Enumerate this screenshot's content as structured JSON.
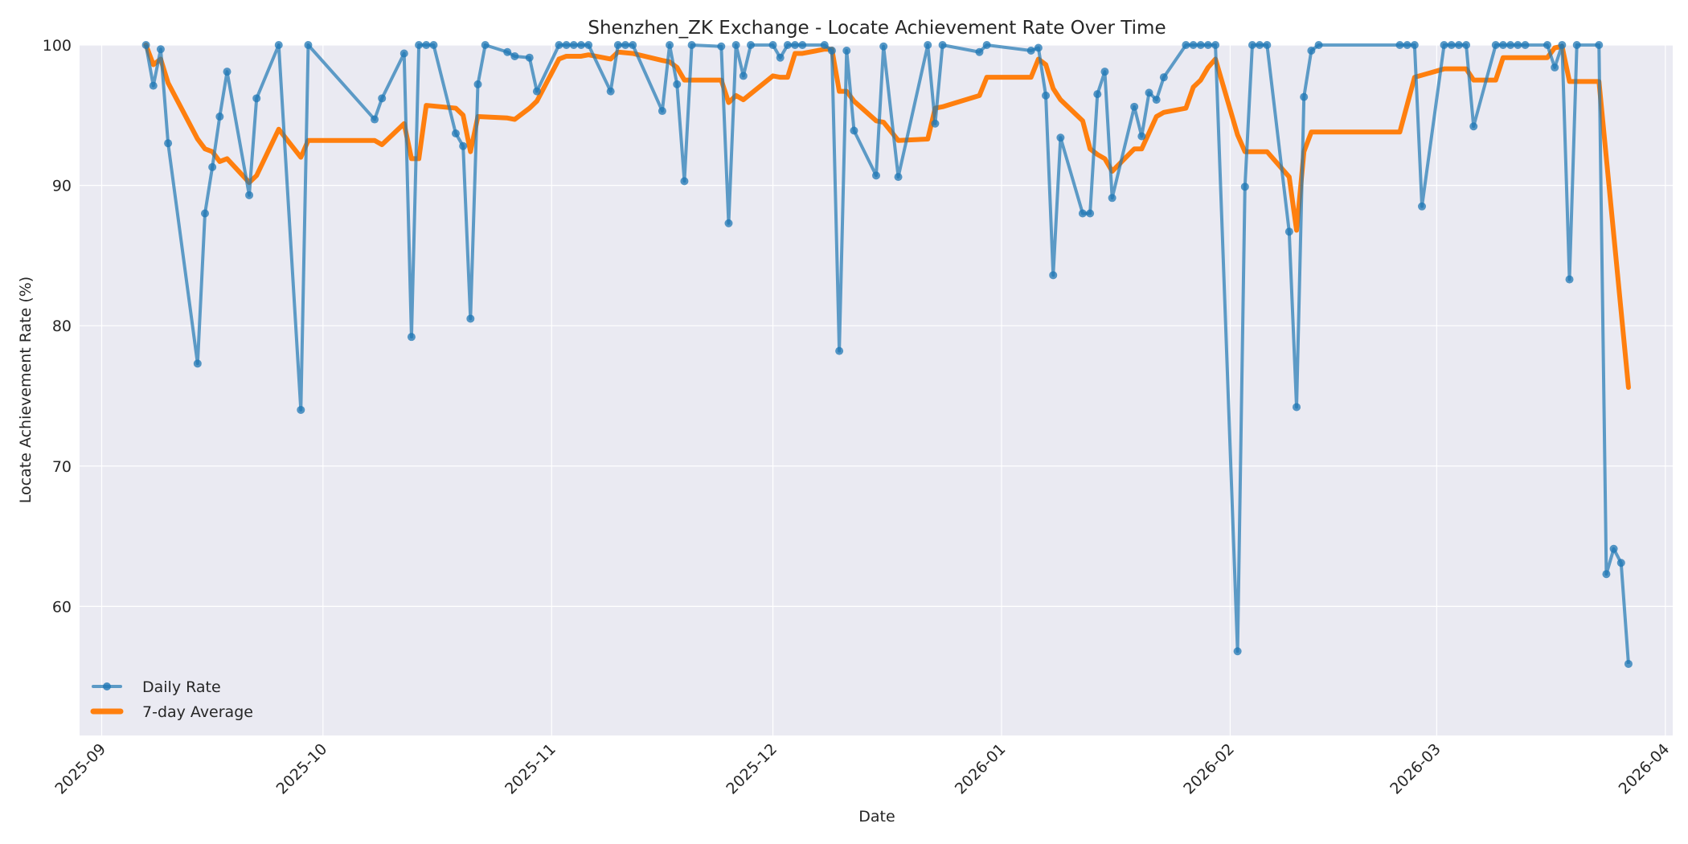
{
  "chart_data": {
    "type": "line",
    "title": "Shenzhen_ZK Exchange - Locate Achievement Rate Over Time",
    "xlabel": "Date",
    "ylabel": "Locate Achievement Rate (%)",
    "ylim": [
      50.8,
      100
    ],
    "xlim": [
      "2025-08-29",
      "2026-04-02"
    ],
    "grid": true,
    "legend_position": "lower left",
    "x_tick_labels": [
      "2025-09",
      "2025-10",
      "2025-11",
      "2025-12",
      "2026-01",
      "2026-02",
      "2026-03",
      "2026-04"
    ],
    "y_tick_labels": [
      "60",
      "70",
      "80",
      "90",
      "100"
    ],
    "colors": {
      "daily": "#1f77b4",
      "avg": "#ff7f0e",
      "background": "#eaeaf2",
      "grid": "#ffffff"
    },
    "series": [
      {
        "name": "Daily Rate",
        "style": "line-marker",
        "points": [
          [
            "2025-09-07",
            100
          ],
          [
            "2025-09-08",
            97.1
          ],
          [
            "2025-09-09",
            99.7
          ],
          [
            "2025-09-10",
            93.0
          ],
          [
            "2025-09-14",
            77.3
          ],
          [
            "2025-09-15",
            88.0
          ],
          [
            "2025-09-16",
            91.3
          ],
          [
            "2025-09-17",
            94.9
          ],
          [
            "2025-09-18",
            98.1
          ],
          [
            "2025-09-21",
            89.3
          ],
          [
            "2025-09-22",
            96.2
          ],
          [
            "2025-09-25",
            100
          ],
          [
            "2025-09-28",
            74.0
          ],
          [
            "2025-09-29",
            100
          ],
          [
            "2025-10-08",
            94.7
          ],
          [
            "2025-10-09",
            96.2
          ],
          [
            "2025-10-12",
            99.4
          ],
          [
            "2025-10-13",
            79.2
          ],
          [
            "2025-10-14",
            100
          ],
          [
            "2025-10-15",
            100
          ],
          [
            "2025-10-16",
            100
          ],
          [
            "2025-10-19",
            93.7
          ],
          [
            "2025-10-20",
            92.8
          ],
          [
            "2025-10-21",
            80.5
          ],
          [
            "2025-10-22",
            97.2
          ],
          [
            "2025-10-23",
            100
          ],
          [
            "2025-10-26",
            99.5
          ],
          [
            "2025-10-27",
            99.2
          ],
          [
            "2025-10-29",
            99.1
          ],
          [
            "2025-10-30",
            96.7
          ],
          [
            "2025-11-02",
            100
          ],
          [
            "2025-11-03",
            100
          ],
          [
            "2025-11-04",
            100
          ],
          [
            "2025-11-05",
            100
          ],
          [
            "2025-11-06",
            100
          ],
          [
            "2025-11-09",
            96.7
          ],
          [
            "2025-11-10",
            100
          ],
          [
            "2025-11-11",
            100
          ],
          [
            "2025-11-12",
            100
          ],
          [
            "2025-11-16",
            95.3
          ],
          [
            "2025-11-17",
            100
          ],
          [
            "2025-11-18",
            97.2
          ],
          [
            "2025-11-19",
            90.3
          ],
          [
            "2025-11-20",
            100
          ],
          [
            "2025-11-24",
            99.9
          ],
          [
            "2025-11-25",
            87.3
          ],
          [
            "2025-11-26",
            100
          ],
          [
            "2025-11-27",
            97.8
          ],
          [
            "2025-11-28",
            100
          ],
          [
            "2025-12-01",
            100
          ],
          [
            "2025-12-02",
            99.1
          ],
          [
            "2025-12-03",
            100
          ],
          [
            "2025-12-04",
            100
          ],
          [
            "2025-12-05",
            100
          ],
          [
            "2025-12-08",
            100
          ],
          [
            "2025-12-09",
            99.6
          ],
          [
            "2025-12-10",
            78.2
          ],
          [
            "2025-12-11",
            99.6
          ],
          [
            "2025-12-12",
            93.9
          ],
          [
            "2025-12-15",
            90.7
          ],
          [
            "2025-12-16",
            99.9
          ],
          [
            "2025-12-18",
            90.6
          ],
          [
            "2025-12-22",
            100
          ],
          [
            "2025-12-23",
            94.4
          ],
          [
            "2025-12-24",
            100
          ],
          [
            "2025-12-29",
            99.5
          ],
          [
            "2025-12-30",
            100
          ],
          [
            "2026-01-05",
            99.6
          ],
          [
            "2026-01-06",
            99.8
          ],
          [
            "2026-01-07",
            96.4
          ],
          [
            "2026-01-08",
            83.6
          ],
          [
            "2026-01-09",
            93.4
          ],
          [
            "2026-01-12",
            88.0
          ],
          [
            "2026-01-13",
            88.0
          ],
          [
            "2026-01-14",
            96.5
          ],
          [
            "2026-01-15",
            98.1
          ],
          [
            "2026-01-16",
            89.1
          ],
          [
            "2026-01-19",
            95.6
          ],
          [
            "2026-01-20",
            93.5
          ],
          [
            "2026-01-21",
            96.6
          ],
          [
            "2026-01-22",
            96.1
          ],
          [
            "2026-01-23",
            97.7
          ],
          [
            "2026-01-26",
            100
          ],
          [
            "2026-01-27",
            100
          ],
          [
            "2026-01-28",
            100
          ],
          [
            "2026-01-29",
            100
          ],
          [
            "2026-01-30",
            100
          ],
          [
            "2026-02-02",
            56.8
          ],
          [
            "2026-02-03",
            89.9
          ],
          [
            "2026-02-04",
            100
          ],
          [
            "2026-02-05",
            100
          ],
          [
            "2026-02-06",
            100
          ],
          [
            "2026-02-09",
            86.7
          ],
          [
            "2026-02-10",
            74.2
          ],
          [
            "2026-02-11",
            96.3
          ],
          [
            "2026-02-12",
            99.6
          ],
          [
            "2026-02-13",
            100
          ],
          [
            "2026-02-24",
            100
          ],
          [
            "2026-02-25",
            100
          ],
          [
            "2026-02-26",
            100
          ],
          [
            "2026-02-27",
            88.5
          ],
          [
            "2026-03-02",
            100
          ],
          [
            "2026-03-03",
            100
          ],
          [
            "2026-03-04",
            100
          ],
          [
            "2026-03-05",
            100
          ],
          [
            "2026-03-06",
            94.2
          ],
          [
            "2026-03-09",
            100
          ],
          [
            "2026-03-10",
            100
          ],
          [
            "2026-03-11",
            100
          ],
          [
            "2026-03-12",
            100
          ],
          [
            "2026-03-13",
            100
          ],
          [
            "2026-03-16",
            100
          ],
          [
            "2026-03-17",
            98.4
          ],
          [
            "2026-03-18",
            100
          ],
          [
            "2026-03-19",
            83.3
          ],
          [
            "2026-03-20",
            100
          ],
          [
            "2026-03-23",
            100
          ],
          [
            "2026-03-24",
            62.3
          ],
          [
            "2026-03-25",
            64.1
          ],
          [
            "2026-03-26",
            63.1
          ],
          [
            "2026-03-27",
            55.9
          ]
        ]
      },
      {
        "name": "7-day Average",
        "style": "thick-line",
        "points": [
          [
            "2025-09-07",
            100
          ],
          [
            "2025-09-08",
            98.6
          ],
          [
            "2025-09-09",
            99.0
          ],
          [
            "2025-09-10",
            97.3
          ],
          [
            "2025-09-14",
            93.3
          ],
          [
            "2025-09-15",
            92.6
          ],
          [
            "2025-09-16",
            92.4
          ],
          [
            "2025-09-17",
            91.7
          ],
          [
            "2025-09-18",
            91.9
          ],
          [
            "2025-09-21",
            90.2
          ],
          [
            "2025-09-22",
            90.7
          ],
          [
            "2025-09-25",
            94.0
          ],
          [
            "2025-09-28",
            92.0
          ],
          [
            "2025-09-29",
            93.2
          ],
          [
            "2025-10-08",
            93.2
          ],
          [
            "2025-10-09",
            92.9
          ],
          [
            "2025-10-12",
            94.4
          ],
          [
            "2025-10-13",
            91.9
          ],
          [
            "2025-10-14",
            91.9
          ],
          [
            "2025-10-15",
            95.7
          ],
          [
            "2025-10-19",
            95.5
          ],
          [
            "2025-10-20",
            95.0
          ],
          [
            "2025-10-21",
            92.4
          ],
          [
            "2025-10-22",
            94.9
          ],
          [
            "2025-10-26",
            94.8
          ],
          [
            "2025-10-27",
            94.7
          ],
          [
            "2025-10-29",
            95.5
          ],
          [
            "2025-10-30",
            96.0
          ],
          [
            "2025-11-02",
            99.0
          ],
          [
            "2025-11-03",
            99.2
          ],
          [
            "2025-11-05",
            99.2
          ],
          [
            "2025-11-06",
            99.3
          ],
          [
            "2025-11-09",
            99.0
          ],
          [
            "2025-11-10",
            99.5
          ],
          [
            "2025-11-12",
            99.4
          ],
          [
            "2025-11-16",
            98.9
          ],
          [
            "2025-11-17",
            98.8
          ],
          [
            "2025-11-18",
            98.4
          ],
          [
            "2025-11-19",
            97.5
          ],
          [
            "2025-11-24",
            97.5
          ],
          [
            "2025-11-25",
            95.9
          ],
          [
            "2025-11-26",
            96.4
          ],
          [
            "2025-11-27",
            96.1
          ],
          [
            "2025-12-01",
            97.8
          ],
          [
            "2025-12-02",
            97.7
          ],
          [
            "2025-12-03",
            97.7
          ],
          [
            "2025-12-04",
            99.4
          ],
          [
            "2025-12-05",
            99.4
          ],
          [
            "2025-12-08",
            99.7
          ],
          [
            "2025-12-09",
            99.7
          ],
          [
            "2025-12-10",
            96.7
          ],
          [
            "2025-12-11",
            96.7
          ],
          [
            "2025-12-12",
            96.0
          ],
          [
            "2025-12-15",
            94.6
          ],
          [
            "2025-12-16",
            94.5
          ],
          [
            "2025-12-18",
            93.2
          ],
          [
            "2025-12-22",
            93.3
          ],
          [
            "2025-12-23",
            95.5
          ],
          [
            "2025-12-24",
            95.6
          ],
          [
            "2025-12-29",
            96.4
          ],
          [
            "2025-12-30",
            97.7
          ],
          [
            "2026-01-05",
            97.7
          ],
          [
            "2026-01-06",
            99.0
          ],
          [
            "2026-01-07",
            98.6
          ],
          [
            "2026-01-08",
            96.9
          ],
          [
            "2026-01-09",
            96.1
          ],
          [
            "2026-01-12",
            94.6
          ],
          [
            "2026-01-13",
            92.6
          ],
          [
            "2026-01-14",
            92.2
          ],
          [
            "2026-01-15",
            91.9
          ],
          [
            "2026-01-16",
            91.0
          ],
          [
            "2026-01-19",
            92.6
          ],
          [
            "2026-01-20",
            92.6
          ],
          [
            "2026-01-22",
            94.9
          ],
          [
            "2026-01-23",
            95.2
          ],
          [
            "2026-01-26",
            95.5
          ],
          [
            "2026-01-27",
            97.0
          ],
          [
            "2026-01-28",
            97.5
          ],
          [
            "2026-01-29",
            98.4
          ],
          [
            "2026-01-30",
            99.0
          ],
          [
            "2026-02-02",
            93.6
          ],
          [
            "2026-02-03",
            92.4
          ],
          [
            "2026-02-06",
            92.4
          ],
          [
            "2026-02-09",
            90.6
          ],
          [
            "2026-02-10",
            86.8
          ],
          [
            "2026-02-11",
            92.4
          ],
          [
            "2026-02-12",
            93.8
          ],
          [
            "2026-02-24",
            93.8
          ],
          [
            "2026-02-26",
            97.7
          ],
          [
            "2026-03-02",
            98.3
          ],
          [
            "2026-03-05",
            98.3
          ],
          [
            "2026-03-06",
            97.5
          ],
          [
            "2026-03-09",
            97.5
          ],
          [
            "2026-03-10",
            99.1
          ],
          [
            "2026-03-16",
            99.1
          ],
          [
            "2026-03-17",
            99.8
          ],
          [
            "2026-03-18",
            99.9
          ],
          [
            "2026-03-19",
            97.4
          ],
          [
            "2026-03-23",
            97.4
          ],
          [
            "2026-03-27",
            75.6
          ]
        ]
      }
    ]
  },
  "legend": {
    "items": [
      {
        "label": "Daily Rate"
      },
      {
        "label": "7-day Average"
      }
    ]
  }
}
